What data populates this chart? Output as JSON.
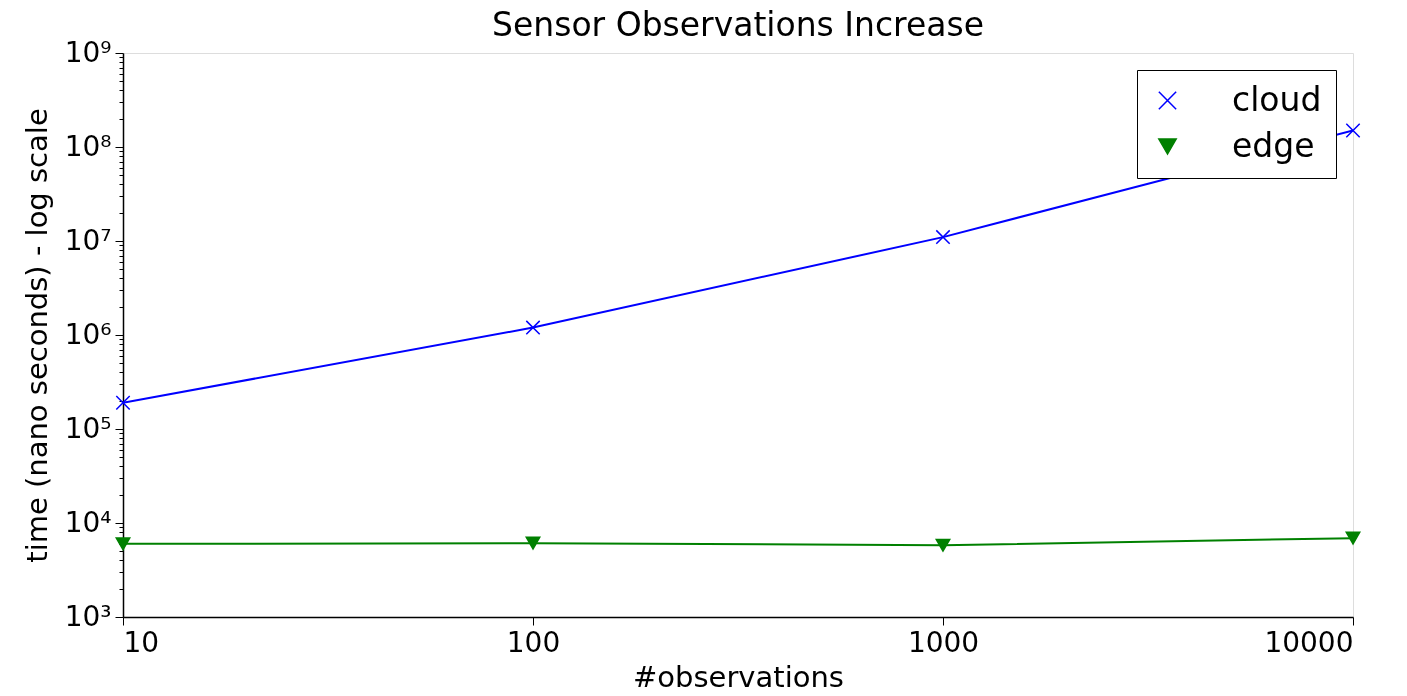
{
  "chart_data": {
    "type": "line",
    "title": "Sensor Observations Increase",
    "xlabel": "#observations",
    "ylabel": "time (nano seconds) - log scale",
    "x": [
      10,
      100,
      1000,
      10000
    ],
    "log": "xy",
    "xlim": [
      10,
      10000
    ],
    "xticks": [
      10,
      100,
      1000,
      10000
    ],
    "ylim": [
      1000,
      1000000000
    ],
    "yticks": [
      {
        "value": 1000,
        "label": "10³"
      },
      {
        "value": 2000,
        "label": null
      },
      {
        "value": 3000,
        "label": null
      },
      {
        "value": 4000,
        "label": null
      },
      {
        "value": 5000,
        "label": null
      },
      {
        "value": 6000,
        "label": null
      },
      {
        "value": 7000,
        "label": null
      },
      {
        "value": 8000,
        "label": null
      },
      {
        "value": 9000,
        "label": null
      },
      {
        "value": 10000,
        "label": "10⁴"
      },
      {
        "value": 20000,
        "label": null
      },
      {
        "value": 30000,
        "label": null
      },
      {
        "value": 40000,
        "label": null
      },
      {
        "value": 50000,
        "label": null
      },
      {
        "value": 60000,
        "label": null
      },
      {
        "value": 70000,
        "label": null
      },
      {
        "value": 80000,
        "label": null
      },
      {
        "value": 90000,
        "label": null
      },
      {
        "value": 100000,
        "label": "10⁵"
      },
      {
        "value": 200000,
        "label": null
      },
      {
        "value": 300000,
        "label": null
      },
      {
        "value": 400000,
        "label": null
      },
      {
        "value": 500000,
        "label": null
      },
      {
        "value": 600000,
        "label": null
      },
      {
        "value": 700000,
        "label": null
      },
      {
        "value": 800000,
        "label": null
      },
      {
        "value": 900000,
        "label": null
      },
      {
        "value": 1000000,
        "label": "10⁶"
      },
      {
        "value": 2000000,
        "label": null
      },
      {
        "value": 3000000,
        "label": null
      },
      {
        "value": 4000000,
        "label": null
      },
      {
        "value": 5000000,
        "label": null
      },
      {
        "value": 6000000,
        "label": null
      },
      {
        "value": 7000000,
        "label": null
      },
      {
        "value": 8000000,
        "label": null
      },
      {
        "value": 9000000,
        "label": null
      },
      {
        "value": 10000000,
        "label": "10⁷"
      },
      {
        "value": 20000000,
        "label": null
      },
      {
        "value": 30000000,
        "label": null
      },
      {
        "value": 40000000,
        "label": null
      },
      {
        "value": 50000000,
        "label": null
      },
      {
        "value": 60000000,
        "label": null
      },
      {
        "value": 70000000,
        "label": null
      },
      {
        "value": 80000000,
        "label": null
      },
      {
        "value": 90000000,
        "label": null
      },
      {
        "value": 100000000,
        "label": "10⁸"
      },
      {
        "value": 200000000,
        "label": null
      },
      {
        "value": 300000000,
        "label": null
      },
      {
        "value": 400000000,
        "label": null
      },
      {
        "value": 500000000,
        "label": null
      },
      {
        "value": 600000000,
        "label": null
      },
      {
        "value": 700000000,
        "label": null
      },
      {
        "value": 800000000,
        "label": null
      },
      {
        "value": 900000000,
        "label": null
      },
      {
        "value": 1000000000,
        "label": "10⁹"
      }
    ],
    "legend": "top right",
    "series": [
      {
        "name": "cloud",
        "color": "#0000ff",
        "marker": "cross",
        "values": [
          190000,
          1200000,
          11000000,
          150000000
        ]
      },
      {
        "name": "edge",
        "color": "#008000",
        "marker": "triangle",
        "values": [
          6000,
          6100,
          5800,
          6900
        ]
      }
    ]
  }
}
